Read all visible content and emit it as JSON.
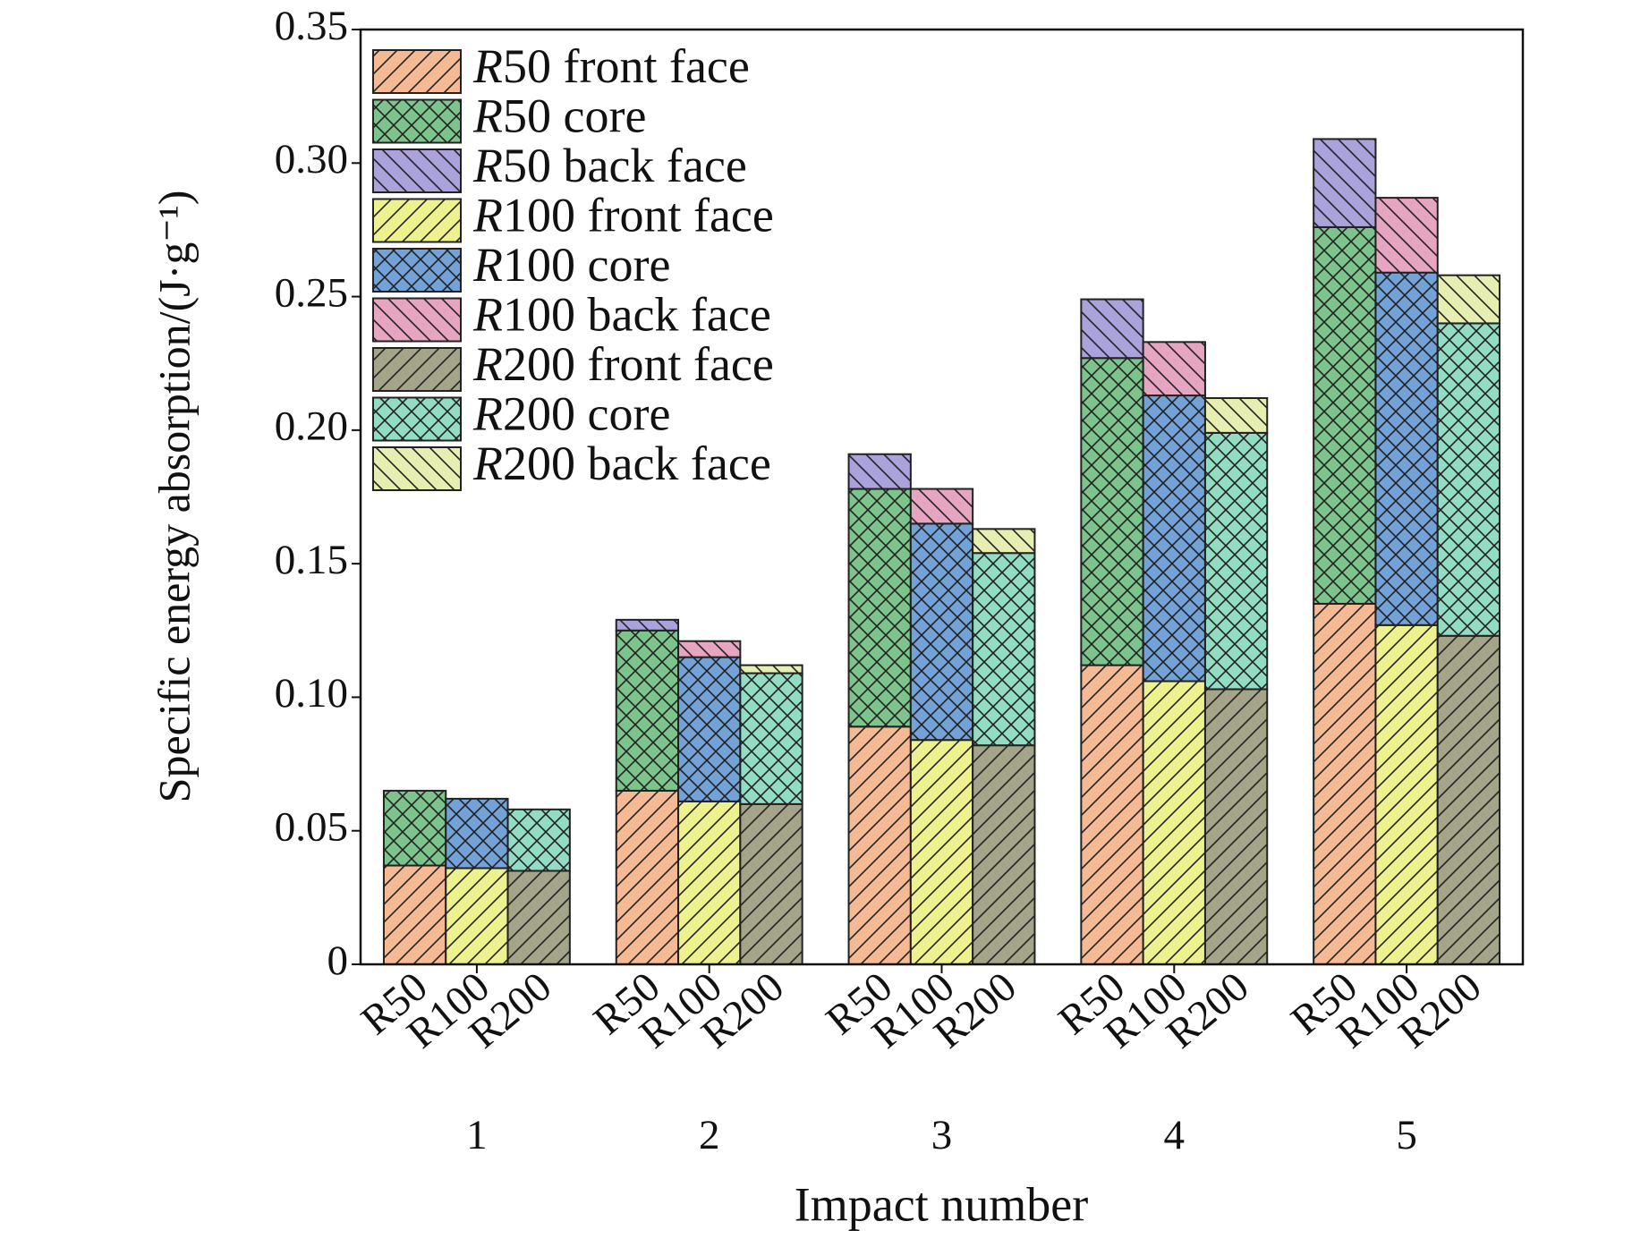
{
  "chart_data": {
    "type": "stacked-grouped-bar",
    "xlabel": "Impact number",
    "ylabel": "Specific energy absorption/(J·g⁻¹)",
    "categories": [
      "1",
      "2",
      "3",
      "4",
      "5"
    ],
    "ylim": [
      0,
      0.35
    ],
    "yticks": [
      0,
      0.05,
      {
        "value": 0.1,
        "label": "0.10"
      },
      0.15,
      {
        "value": 0.2,
        "label": "0.20"
      },
      0.25,
      {
        "value": 0.3,
        "label": "0.30"
      },
      0.35
    ],
    "stacks": [
      {
        "name": "R50",
        "series": [
          {
            "name": "R50 front face",
            "color": "#f5b994",
            "hatch": "/",
            "values": [
              0.037,
              0.065,
              0.089,
              0.112,
              0.135
            ]
          },
          {
            "name": "R50 core",
            "color": "#7cc48c",
            "hatch": "x",
            "values": [
              0.028,
              0.06,
              0.089,
              0.115,
              0.141
            ]
          },
          {
            "name": "R50 back face",
            "color": "#aaa2da",
            "hatch": "\\",
            "values": [
              0,
              0.004,
              0.013,
              0.022,
              0.033
            ]
          }
        ]
      },
      {
        "name": "R100",
        "series": [
          {
            "name": "R100 front face",
            "color": "#eef28e",
            "hatch": "/",
            "values": [
              0.036,
              0.061,
              0.084,
              0.106,
              0.127
            ]
          },
          {
            "name": "R100 core",
            "color": "#72a2d8",
            "hatch": "x",
            "values": [
              0.026,
              0.054,
              0.081,
              0.107,
              0.132
            ]
          },
          {
            "name": "R100 back face",
            "color": "#e6a6c2",
            "hatch": "\\",
            "values": [
              0,
              0.006,
              0.013,
              0.02,
              0.028
            ]
          }
        ]
      },
      {
        "name": "R200",
        "series": [
          {
            "name": "R200 front face",
            "color": "#a4a488",
            "hatch": "/",
            "values": [
              0.035,
              0.06,
              0.082,
              0.103,
              0.123
            ]
          },
          {
            "name": "R200 core",
            "color": "#92dcc4",
            "hatch": "x",
            "values": [
              0.023,
              0.049,
              0.072,
              0.096,
              0.117
            ]
          },
          {
            "name": "R200 back face",
            "color": "#e7efb0",
            "hatch": "\\",
            "values": [
              0,
              0.003,
              0.009,
              0.013,
              0.018
            ]
          }
        ]
      }
    ]
  }
}
